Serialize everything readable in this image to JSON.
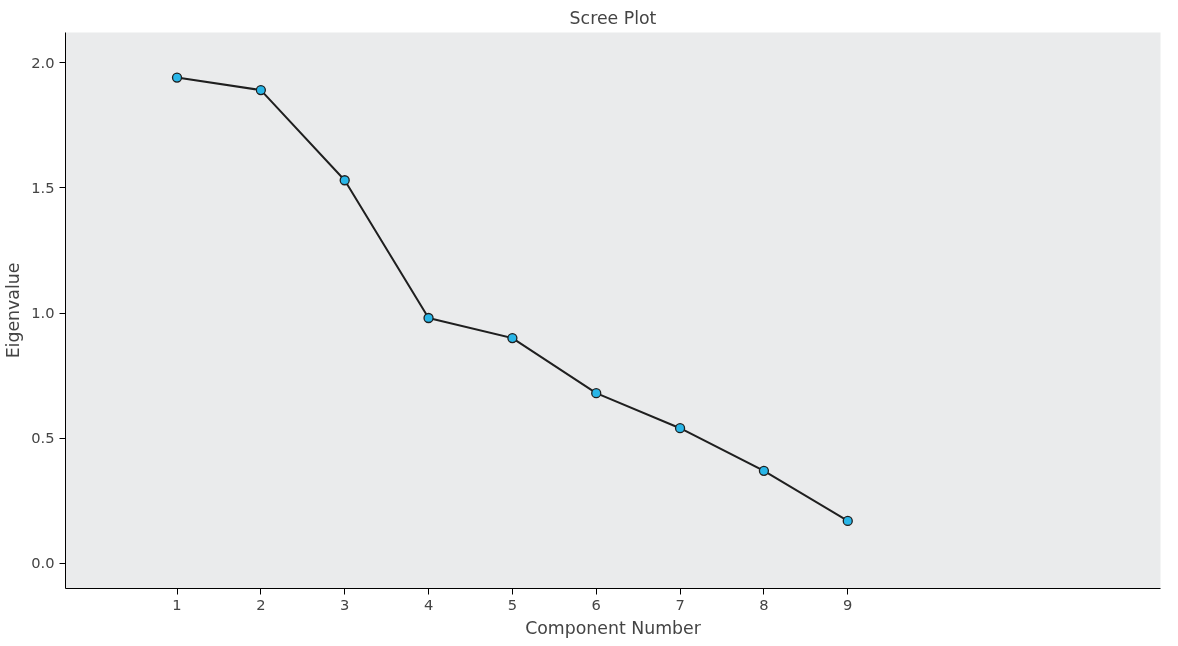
{
  "chart_data": {
    "type": "line",
    "title": "Scree Plot",
    "xlabel": "Component Number",
    "ylabel": "Eigenvalue",
    "x": [
      1,
      2,
      3,
      4,
      5,
      6,
      7,
      8,
      9
    ],
    "series": [
      {
        "color": "#1f1f1f",
        "values": [
          1.94,
          1.89,
          1.53,
          0.98,
          0.9,
          0.68,
          0.54,
          0.37,
          0.17
        ]
      }
    ],
    "marker": "circle",
    "line_style": "solid",
    "grid": false,
    "xlim": [
      -0.33,
      12.73
    ],
    "xticks": [
      1,
      2,
      3,
      4,
      5,
      6,
      7,
      8,
      9
    ],
    "ylim": [
      -0.1,
      2.12
    ],
    "yticks": [
      {
        "value": 0,
        "label": "0.0"
      },
      {
        "value": 0.5,
        "label": "0.5"
      },
      {
        "value": 1,
        "label": "1.0"
      },
      {
        "value": 1.5,
        "label": "1.5"
      },
      {
        "value": 2,
        "label": "2.0"
      }
    ]
  }
}
